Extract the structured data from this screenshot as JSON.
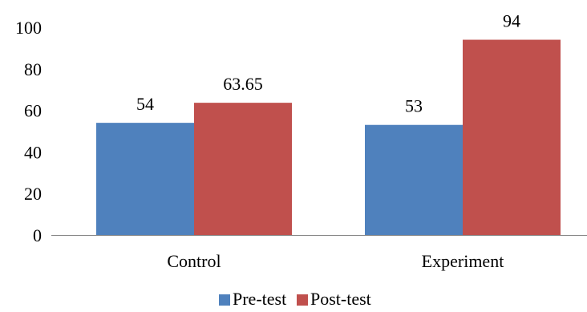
{
  "chart_data": {
    "type": "bar",
    "categories": [
      "Control",
      "Experiment"
    ],
    "series": [
      {
        "name": "Pre-test",
        "values": [
          54,
          53
        ],
        "labels": [
          "54",
          "53"
        ],
        "color": "#4f81bd"
      },
      {
        "name": "Post-test",
        "values": [
          63.65,
          94
        ],
        "labels": [
          "63.65",
          "94"
        ],
        "color": "#c0504d"
      }
    ],
    "ylim": [
      0,
      100
    ],
    "yticks": [
      0,
      20,
      40,
      60,
      80,
      100
    ],
    "ytick_labels": [
      "0",
      "20",
      "40",
      "60",
      "80",
      "100"
    ],
    "grid": false,
    "legend": "bottom-center",
    "axis_color": "#868686"
  }
}
